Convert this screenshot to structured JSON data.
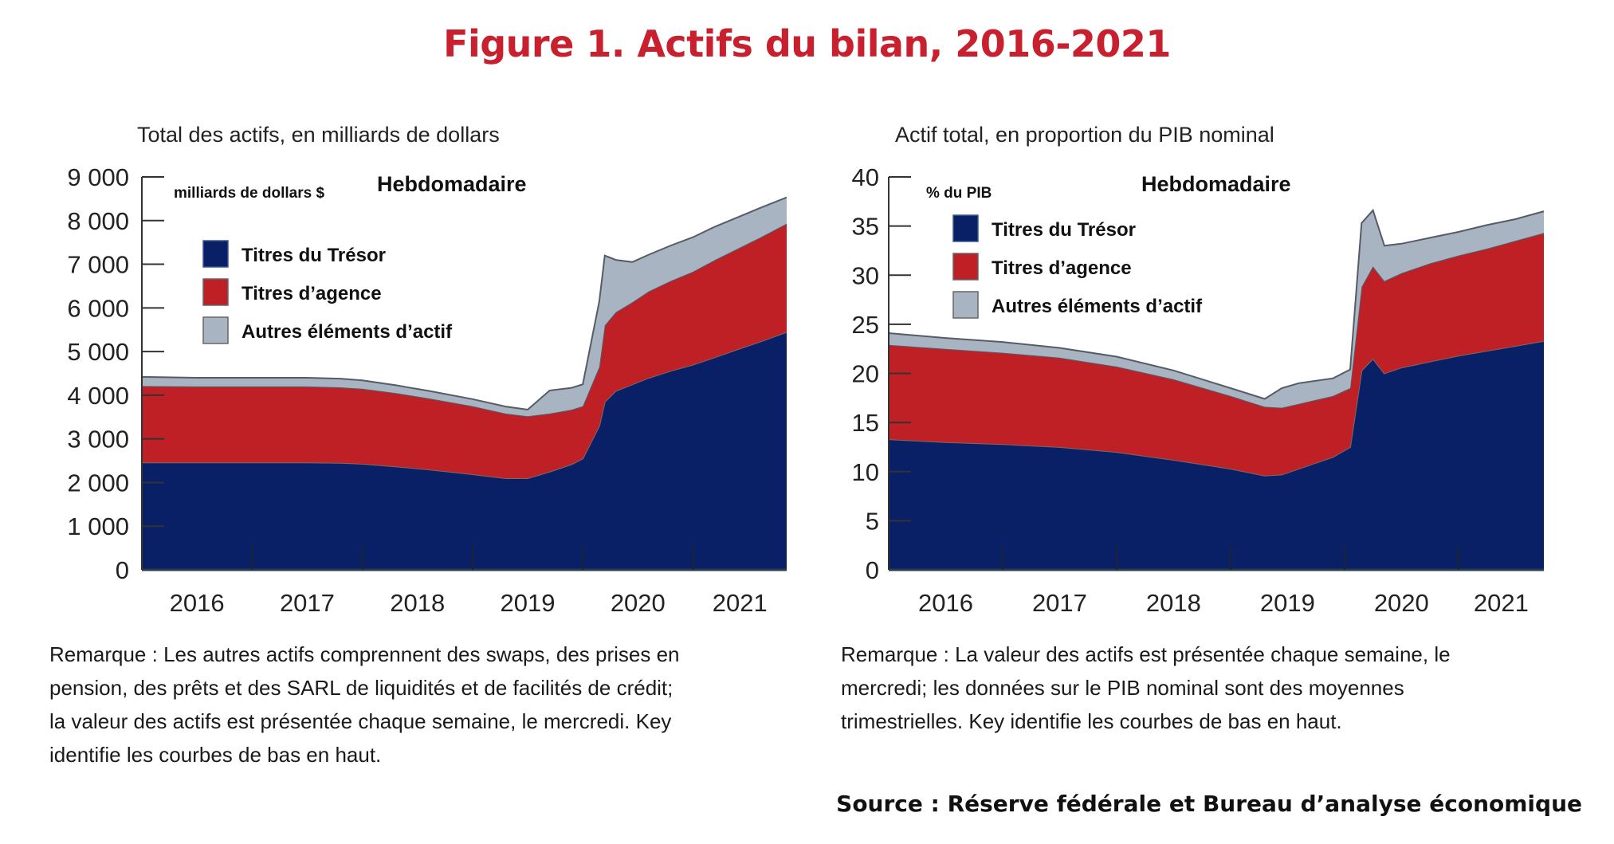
{
  "figure": {
    "title": "Figure 1. Actifs du bilan, 2016-2021",
    "source": "Source : Réserve fédérale et Bureau d’analyse économique"
  },
  "colors": {
    "title": "#c8202f",
    "treasury": "#0a2066",
    "agency": "#be2025",
    "other": "#a9b4c2",
    "edge": "#555c66",
    "axis": "#333333"
  },
  "chart_data": [
    {
      "type": "area",
      "stacked": true,
      "subtitle": "Total des actifs, en milliards de dollars",
      "unit_label": "milliards de dollars $",
      "frequency_label": "Hebdomadaire",
      "xlabel": "",
      "ylabel": "milliards de dollars $",
      "ylim": [
        0,
        9000
      ],
      "yticks": [
        0,
        1000,
        2000,
        3000,
        4000,
        5000,
        6000,
        7000,
        8000,
        9000
      ],
      "ytick_labels": [
        "0",
        "1 000",
        "2 000",
        "3 000",
        "4 000",
        "5 000",
        "6 000",
        "7 000",
        "8 000",
        "9 000"
      ],
      "xlim": [
        2016.0,
        2021.85
      ],
      "xticks": [
        2016,
        2017,
        2018,
        2019,
        2020,
        2021
      ],
      "xtick_labels": [
        "2016",
        "2017",
        "2018",
        "2019",
        "2020",
        "2021"
      ],
      "year_separators": [
        2017,
        2018,
        2019,
        2020,
        2021
      ],
      "legend": {
        "placement": "top-left",
        "entries": [
          "Titres du Trésor",
          "Titres d’agence",
          "Autres éléments d’actif"
        ]
      },
      "x": [
        2016.0,
        2016.5,
        2017.0,
        2017.5,
        2017.8,
        2018.0,
        2018.3,
        2018.6,
        2019.0,
        2019.3,
        2019.5,
        2019.7,
        2019.9,
        2020.0,
        2020.15,
        2020.2,
        2020.3,
        2020.45,
        2020.6,
        2020.8,
        2021.0,
        2021.2,
        2021.4,
        2021.6,
        2021.85
      ],
      "series": [
        {
          "name": "Titres du Trésor",
          "values": [
            2460,
            2460,
            2460,
            2460,
            2450,
            2430,
            2370,
            2300,
            2190,
            2100,
            2100,
            2250,
            2420,
            2550,
            3300,
            3850,
            4100,
            4250,
            4400,
            4560,
            4700,
            4870,
            5050,
            5220,
            5450
          ]
        },
        {
          "name": "Titres d’agence",
          "values": [
            1750,
            1740,
            1740,
            1740,
            1730,
            1720,
            1680,
            1630,
            1560,
            1480,
            1420,
            1330,
            1250,
            1200,
            1350,
            1750,
            1800,
            1880,
            1980,
            2060,
            2130,
            2230,
            2300,
            2380,
            2480
          ]
        },
        {
          "name": "Autres éléments d’actif",
          "values": [
            210,
            200,
            200,
            200,
            200,
            190,
            180,
            170,
            160,
            160,
            150,
            530,
            500,
            500,
            1500,
            1600,
            1200,
            920,
            840,
            810,
            790,
            760,
            720,
            680,
            600
          ]
        }
      ]
    },
    {
      "type": "area",
      "stacked": true,
      "subtitle": "Actif total, en proportion du PIB nominal",
      "unit_label": "% du PIB",
      "frequency_label": "Hebdomadaire",
      "xlabel": "",
      "ylabel": "% du PIB",
      "ylim": [
        0,
        40
      ],
      "yticks": [
        0,
        5,
        10,
        15,
        20,
        25,
        30,
        35,
        40
      ],
      "ytick_labels": [
        "0",
        "5",
        "10",
        "15",
        "20",
        "25",
        "30",
        "35",
        "40"
      ],
      "xlim": [
        2016.0,
        2021.75
      ],
      "xticks": [
        2016,
        2017,
        2018,
        2019,
        2020,
        2021
      ],
      "xtick_labels": [
        "2016",
        "2017",
        "2018",
        "2019",
        "2020",
        "2021"
      ],
      "year_separators": [
        2017,
        2018,
        2019,
        2020,
        2021
      ],
      "legend": {
        "placement": "top-left",
        "entries": [
          "Titres du Trésor",
          "Titres d’agence",
          "Autres éléments d’actif"
        ]
      },
      "x": [
        2016.0,
        2016.5,
        2017.0,
        2017.5,
        2018.0,
        2018.5,
        2019.0,
        2019.3,
        2019.45,
        2019.6,
        2019.9,
        2020.05,
        2020.15,
        2020.25,
        2020.35,
        2020.5,
        2020.75,
        2021.0,
        2021.25,
        2021.5,
        2021.75
      ],
      "series": [
        {
          "name": "Titres du Trésor",
          "values": [
            13.3,
            13.0,
            12.8,
            12.5,
            12.0,
            11.2,
            10.3,
            9.6,
            9.7,
            10.3,
            11.5,
            12.5,
            20.3,
            21.5,
            20.0,
            20.6,
            21.2,
            21.8,
            22.3,
            22.8,
            23.3
          ]
        },
        {
          "name": "Titres d’agence",
          "values": [
            9.6,
            9.5,
            9.3,
            9.1,
            8.7,
            8.2,
            7.4,
            7.0,
            6.8,
            6.6,
            6.2,
            6.0,
            8.5,
            9.4,
            9.4,
            9.6,
            10.0,
            10.2,
            10.4,
            10.7,
            11.0
          ]
        },
        {
          "name": "Autres éléments d’actif",
          "values": [
            1.2,
            1.1,
            1.1,
            1.0,
            1.0,
            0.9,
            0.8,
            0.8,
            2.0,
            2.1,
            1.8,
            1.9,
            6.5,
            5.7,
            3.6,
            3.0,
            2.6,
            2.4,
            2.4,
            2.2,
            2.2
          ]
        }
      ]
    }
  ],
  "notes": {
    "left": [
      "Remarque : Les autres actifs comprennent des swaps, des prises en",
      "pension, des prêts et des SARL de liquidités et de facilités de crédit;",
      "la valeur des actifs est présentée chaque semaine, le mercredi. Key",
      "identifie les courbes de bas en haut."
    ],
    "right": [
      "Remarque : La valeur des actifs est présentée chaque semaine, le",
      "mercredi; les données sur le PIB nominal sont des moyennes",
      "trimestrielles. Key identifie les courbes de bas en haut."
    ]
  }
}
